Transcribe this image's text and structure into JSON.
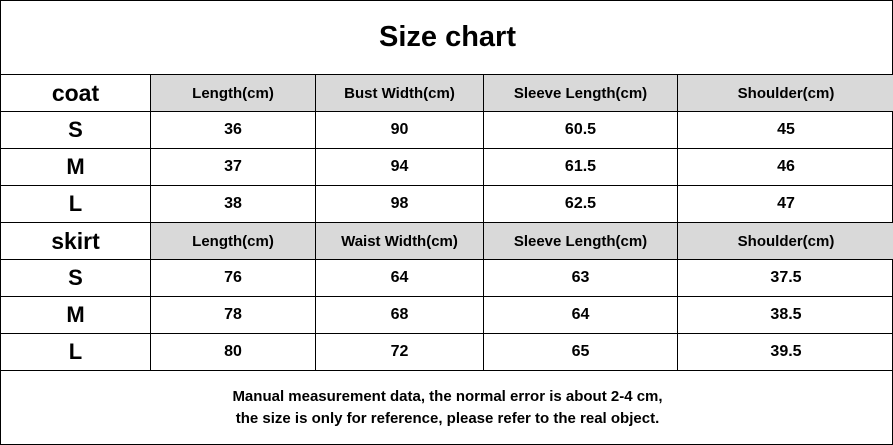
{
  "title": "Size chart",
  "sections": [
    {
      "label": "coat",
      "headers": [
        "Length(cm)",
        "Bust Width(cm)",
        "Sleeve Length(cm)",
        "Shoulder(cm)"
      ],
      "rows": [
        [
          "S",
          "36",
          "90",
          "60.5",
          "45"
        ],
        [
          "M",
          "37",
          "94",
          "61.5",
          "46"
        ],
        [
          "L",
          "38",
          "98",
          "62.5",
          "47"
        ]
      ]
    },
    {
      "label": "skirt",
      "headers": [
        "Length(cm)",
        "Waist Width(cm)",
        "Sleeve Length(cm)",
        "Shoulder(cm)"
      ],
      "rows": [
        [
          "S",
          "76",
          "64",
          "63",
          "37.5"
        ],
        [
          "M",
          "78",
          "68",
          "64",
          "38.5"
        ],
        [
          "L",
          "80",
          "72",
          "65",
          "39.5"
        ]
      ]
    }
  ],
  "note": [
    "Manual measurement data, the normal error is about 2-4 cm,",
    "the size is only for reference, please refer to the real object."
  ]
}
